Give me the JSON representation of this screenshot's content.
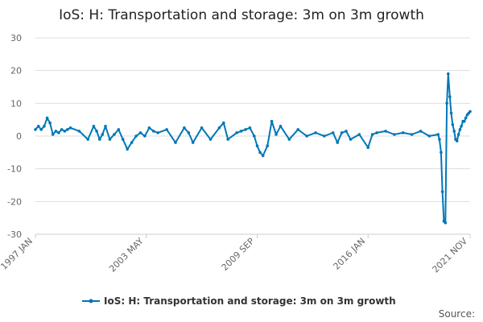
{
  "chart_data": {
    "type": "line",
    "title": "IoS: H: Transportation and storage: 3m on 3m growth",
    "xlabel": "",
    "ylabel": "",
    "ylim": [
      -30,
      30
    ],
    "yticks": [
      30,
      20,
      10,
      0,
      -10,
      -20,
      -30
    ],
    "xlim": [
      1997.0,
      2021.83
    ],
    "xticks": [
      {
        "value": 1997.0,
        "label": "1997 JAN"
      },
      {
        "value": 2003.33,
        "label": "2003 MAY"
      },
      {
        "value": 2009.67,
        "label": "2009 SEP"
      },
      {
        "value": 2016.0,
        "label": "2016 JAN"
      },
      {
        "value": 2021.83,
        "label": "2021 NOV"
      }
    ],
    "grid": "horizontal",
    "legend_position": "bottom",
    "colors": {
      "series": "#0077b6",
      "grid": "#dddddd",
      "axis": "#cccccc"
    },
    "series": [
      {
        "name": "IoS: H: Transportation and storage: 3m on 3m growth",
        "x": [
          1997.0,
          1997.17,
          1997.33,
          1997.5,
          1997.67,
          1997.83,
          1998.0,
          1998.17,
          1998.33,
          1998.5,
          1998.67,
          1998.83,
          1999.0,
          1999.5,
          2000.0,
          2000.33,
          2000.5,
          2000.67,
          2000.83,
          2001.0,
          2001.25,
          2001.5,
          2001.75,
          2002.0,
          2002.25,
          2002.5,
          2002.75,
          2003.0,
          2003.25,
          2003.5,
          2003.75,
          2004.0,
          2004.5,
          2005.0,
          2005.5,
          2005.75,
          2006.0,
          2006.5,
          2007.0,
          2007.5,
          2007.75,
          2008.0,
          2008.5,
          2008.75,
          2009.0,
          2009.25,
          2009.5,
          2009.67,
          2009.83,
          2010.0,
          2010.25,
          2010.5,
          2010.75,
          2011.0,
          2011.5,
          2012.0,
          2012.5,
          2013.0,
          2013.5,
          2014.0,
          2014.25,
          2014.5,
          2014.75,
          2015.0,
          2015.5,
          2016.0,
          2016.25,
          2016.5,
          2017.0,
          2017.5,
          2018.0,
          2018.5,
          2019.0,
          2019.5,
          2020.0,
          2020.08,
          2020.17,
          2020.25,
          2020.33,
          2020.42,
          2020.5,
          2020.58,
          2020.67,
          2020.75,
          2020.83,
          2020.92,
          2021.0,
          2021.08,
          2021.17,
          2021.25,
          2021.33,
          2021.42,
          2021.5,
          2021.58,
          2021.67,
          2021.75,
          2021.83
        ],
        "values": [
          2.0,
          3.0,
          2.0,
          3.0,
          5.5,
          4.0,
          0.5,
          1.5,
          1.0,
          2.0,
          1.5,
          2.0,
          2.5,
          1.5,
          -1.0,
          3.0,
          1.5,
          -1.0,
          0.5,
          3.0,
          -1.0,
          0.5,
          2.0,
          -1.0,
          -4.0,
          -2.0,
          0.0,
          1.0,
          0.0,
          2.5,
          1.5,
          1.0,
          2.0,
          -2.0,
          2.5,
          1.0,
          -2.0,
          2.5,
          -1.0,
          2.5,
          4.0,
          -1.0,
          1.0,
          1.5,
          2.0,
          2.5,
          0.0,
          -3.0,
          -5.0,
          -6.0,
          -3.0,
          4.5,
          0.5,
          3.0,
          -1.0,
          2.0,
          0.0,
          1.0,
          0.0,
          1.0,
          -2.0,
          1.0,
          1.5,
          -1.0,
          0.5,
          -3.5,
          0.5,
          1.0,
          1.5,
          0.5,
          1.0,
          0.5,
          1.5,
          0.0,
          0.5,
          -1.0,
          -5.0,
          -17.0,
          -26.0,
          -26.5,
          10.0,
          19.0,
          12.0,
          7.0,
          3.5,
          1.5,
          -1.0,
          -1.5,
          0.5,
          2.0,
          3.0,
          4.5,
          4.5,
          5.5,
          6.5,
          7.0,
          7.5
        ]
      }
    ]
  },
  "source_label": "Source:"
}
